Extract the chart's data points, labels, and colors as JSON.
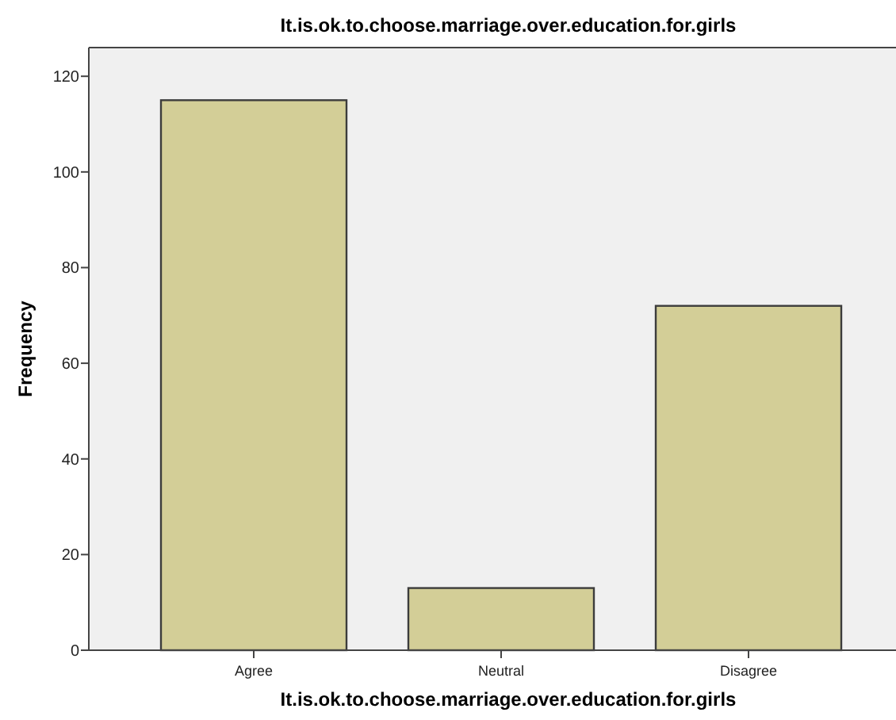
{
  "chart_data": {
    "type": "bar",
    "title": "It.is.ok.to.choose.marriage.over.education.for.girls",
    "xlabel": "It.is.ok.to.choose.marriage.over.education.for.girls",
    "ylabel": "Frequency",
    "categories": [
      "Agree",
      "Neutral",
      "Disagree"
    ],
    "values": [
      115,
      13,
      72
    ],
    "color": "#d3ce97",
    "ylim": [
      0,
      126
    ],
    "yticks": [
      0,
      20,
      40,
      60,
      80,
      100,
      120
    ],
    "grid": false
  }
}
